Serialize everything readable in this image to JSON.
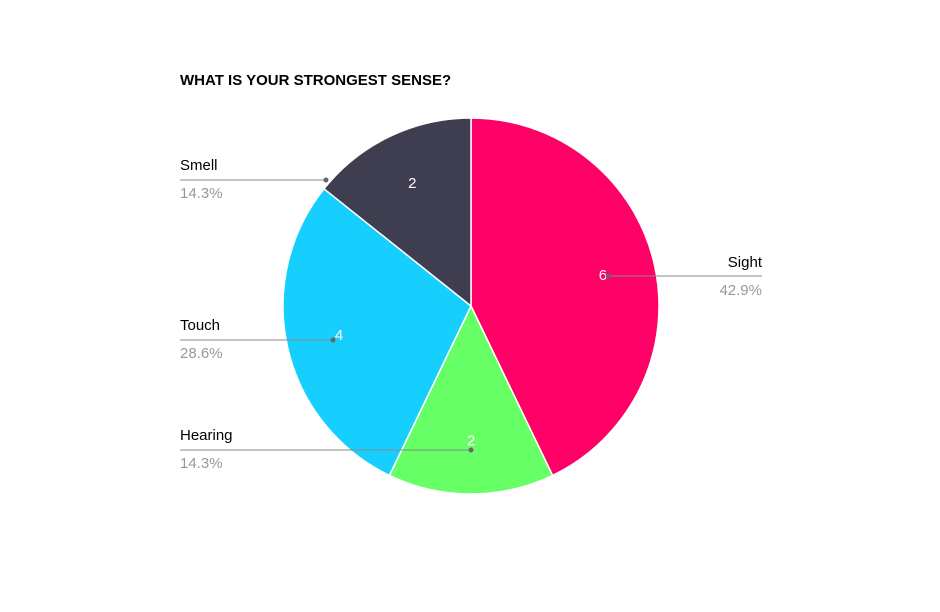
{
  "chart_data": {
    "type": "pie",
    "title": "WHAT IS YOUR STRONGEST SENSE?",
    "categories": [
      "Sight",
      "Hearing",
      "Touch",
      "Smell"
    ],
    "values": [
      6,
      2,
      4,
      2
    ],
    "percent_labels": [
      "42.9%",
      "14.3%",
      "28.6%",
      "14.3%"
    ],
    "colors": [
      "#ff0066",
      "#66ff66",
      "#16cfff",
      "#3f3d50"
    ]
  }
}
